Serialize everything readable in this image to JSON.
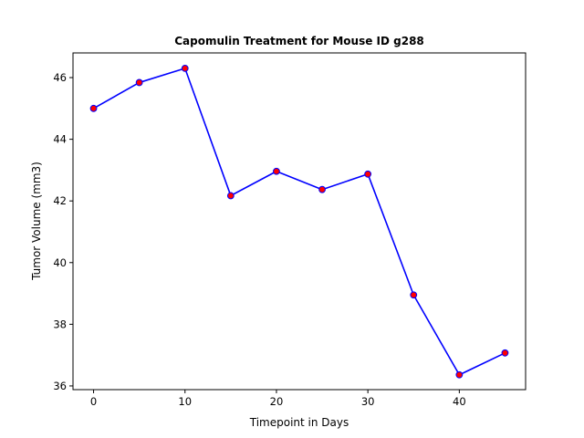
{
  "chart_data": {
    "type": "line",
    "title": "Capomulin Treatment for Mouse ID g288",
    "xlabel": "Timepoint in Days",
    "ylabel": "Tumor Volume (mm3)",
    "x": [
      0,
      5,
      10,
      15,
      20,
      25,
      30,
      35,
      40,
      45
    ],
    "series": [
      {
        "values": [
          45.0,
          45.84,
          46.3,
          42.17,
          42.96,
          42.37,
          42.87,
          38.95,
          36.36,
          37.07
        ],
        "line_color": "#0000ff",
        "marker_face_color": "#ff0000",
        "marker_edge_color": "#0000ff",
        "marker": "circle"
      }
    ],
    "xlim": [
      -2.25,
      47.25
    ],
    "ylim": [
      35.88,
      46.8
    ],
    "xticks": [
      0,
      10,
      20,
      30,
      40
    ],
    "yticks": [
      36,
      38,
      40,
      42,
      44,
      46
    ],
    "grid": false,
    "legend": false
  }
}
